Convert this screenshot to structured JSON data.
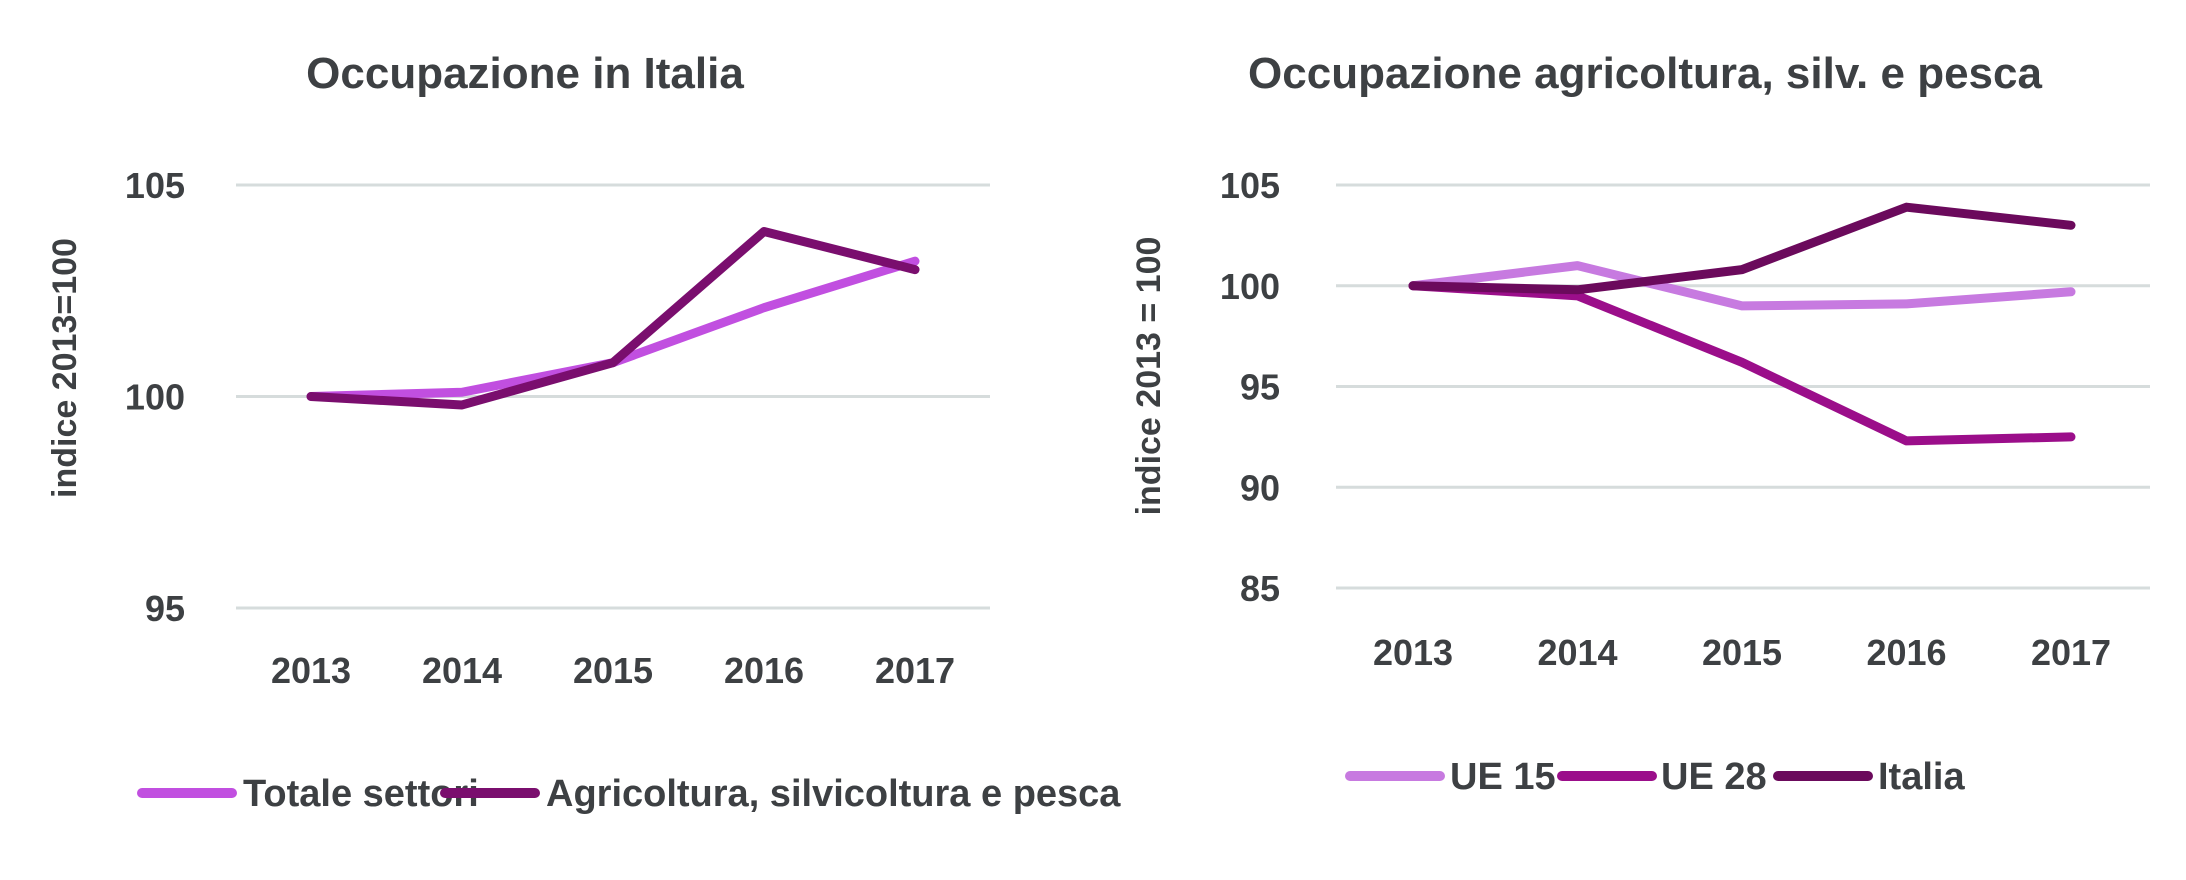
{
  "chart_data": [
    {
      "type": "line",
      "title": "Occupazione in Italia",
      "xlabel": "",
      "ylabel": "indice 2013=100",
      "categories": [
        "2013",
        "2014",
        "2015",
        "2016",
        "2017"
      ],
      "yticks": [
        "105",
        "100",
        "95"
      ],
      "ylim": [
        95,
        105
      ],
      "grid": true,
      "legend_position": "bottom",
      "series": [
        {
          "name": "Totale settori",
          "color": "#c14fe0",
          "values": [
            100.0,
            100.1,
            100.8,
            102.1,
            103.2
          ]
        },
        {
          "name": "Agricoltura, silvicoltura e pesca",
          "color": "#7a0e6e",
          "values": [
            100.0,
            99.8,
            100.8,
            103.9,
            103.0
          ]
        }
      ]
    },
    {
      "type": "line",
      "title": "Occupazione agricoltura, silv. e pesca",
      "xlabel": "",
      "ylabel": "indice 2013 = 100",
      "categories": [
        "2013",
        "2014",
        "2015",
        "2016",
        "2017"
      ],
      "yticks": [
        "105",
        "100",
        "95",
        "90",
        "85"
      ],
      "ylim": [
        85,
        105
      ],
      "grid": true,
      "legend_position": "bottom",
      "series": [
        {
          "name": "UE 15",
          "color": "#c77ae0",
          "values": [
            100.0,
            101.0,
            99.0,
            99.1,
            99.7
          ]
        },
        {
          "name": "UE 28",
          "color": "#9b0e8a",
          "values": [
            100.0,
            99.5,
            96.2,
            92.3,
            92.5
          ]
        },
        {
          "name": "Italia",
          "color": "#6b0a5c",
          "values": [
            100.0,
            99.8,
            100.8,
            103.9,
            103.0
          ]
        }
      ]
    }
  ]
}
